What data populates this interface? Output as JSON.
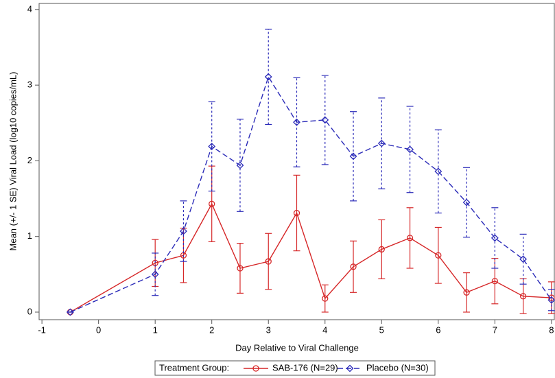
{
  "chart_data": {
    "type": "line",
    "xlabel": "Day Relative to Viral Challenge",
    "ylabel": "Mean (+/- 1 SE) Viral Load (log10 copies/mL)",
    "legend_title": "Treatment Group:",
    "x": [
      -0.5,
      1,
      1.5,
      2,
      2.5,
      3,
      3.5,
      4,
      4.5,
      5,
      5.5,
      6,
      6.5,
      7,
      7.5,
      8
    ],
    "series": [
      {
        "name": "SAB-176 (N=29)",
        "color": "#d62728",
        "marker": "circle",
        "dash": false,
        "values": [
          0,
          0.65,
          0.75,
          1.43,
          0.58,
          0.67,
          1.31,
          0.18,
          0.6,
          0.83,
          0.98,
          0.75,
          0.26,
          0.41,
          0.21,
          0.19
        ],
        "errors": [
          0,
          0.31,
          0.36,
          0.5,
          0.33,
          0.37,
          0.5,
          0.18,
          0.34,
          0.39,
          0.4,
          0.37,
          0.26,
          0.3,
          0.23,
          0.21
        ]
      },
      {
        "name": "Placebo (N=30)",
        "color": "#2a2ab8",
        "marker": "diamond",
        "dash": true,
        "values": [
          0,
          0.5,
          1.07,
          2.19,
          1.94,
          3.11,
          2.51,
          2.54,
          2.06,
          2.23,
          2.15,
          1.86,
          1.45,
          0.98,
          0.7,
          0.16
        ],
        "errors": [
          0,
          0.28,
          0.4,
          0.59,
          0.61,
          0.63,
          0.59,
          0.59,
          0.59,
          0.6,
          0.57,
          0.55,
          0.46,
          0.4,
          0.33,
          0.14
        ]
      }
    ],
    "xlim": [
      -1.05,
      8.05
    ],
    "ylim": [
      -0.1,
      4.08
    ],
    "xticks": [
      -1,
      0,
      1,
      2,
      3,
      4,
      5,
      6,
      7,
      8
    ],
    "yticks": [
      0,
      1,
      2,
      3,
      4
    ]
  }
}
